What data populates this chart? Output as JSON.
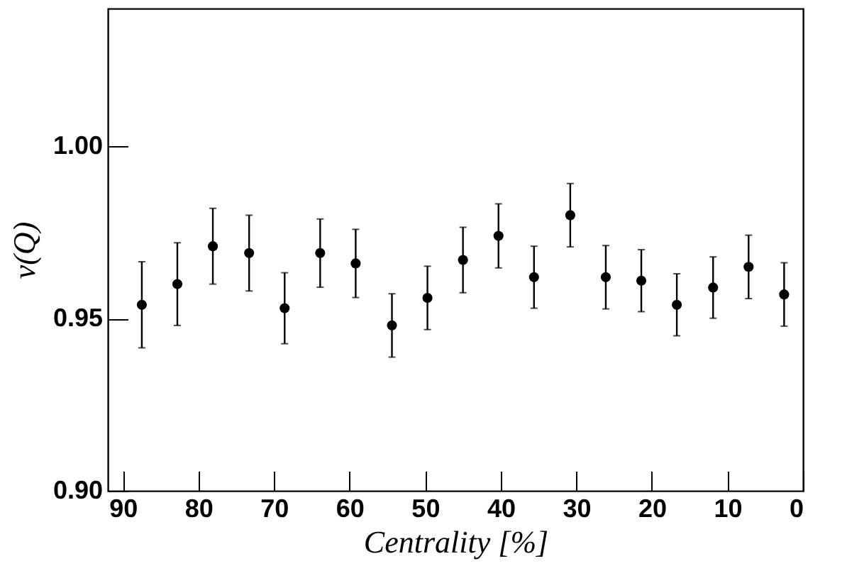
{
  "chart_data": {
    "type": "scatter",
    "xlabel": "Centrality [%]",
    "ylabel": "v(Q)",
    "x": [
      87.5,
      82.8,
      78.1,
      73.3,
      68.6,
      63.9,
      59.2,
      54.4,
      49.7,
      45.0,
      40.3,
      35.6,
      30.8,
      26.1,
      21.4,
      16.7,
      11.9,
      7.2,
      2.5
    ],
    "series": [
      {
        "color": "#000000",
        "values": [
          0.954,
          0.96,
          0.971,
          0.969,
          0.953,
          0.969,
          0.966,
          0.948,
          0.956,
          0.967,
          0.974,
          0.962,
          0.98,
          0.962,
          0.961,
          0.954,
          0.959,
          0.965,
          0.957
        ],
        "errors": [
          0.0125,
          0.012,
          0.011,
          0.011,
          0.0103,
          0.0099,
          0.0099,
          0.0092,
          0.0092,
          0.0095,
          0.0093,
          0.009,
          0.0092,
          0.0092,
          0.009,
          0.009,
          0.0089,
          0.0092,
          0.0092
        ]
      }
    ],
    "xlim": [
      92,
      0
    ],
    "xticks": [
      90,
      80,
      70,
      60,
      50,
      40,
      30,
      20,
      10,
      0
    ],
    "ylim": [
      0.9,
      1.04
    ],
    "yticks": [
      {
        "value": 0.9,
        "label": "0.90"
      },
      {
        "value": 0.95,
        "label": "0.95"
      },
      {
        "value": 1.0,
        "label": "1.00"
      }
    ],
    "marker": "circle",
    "grid": false
  }
}
